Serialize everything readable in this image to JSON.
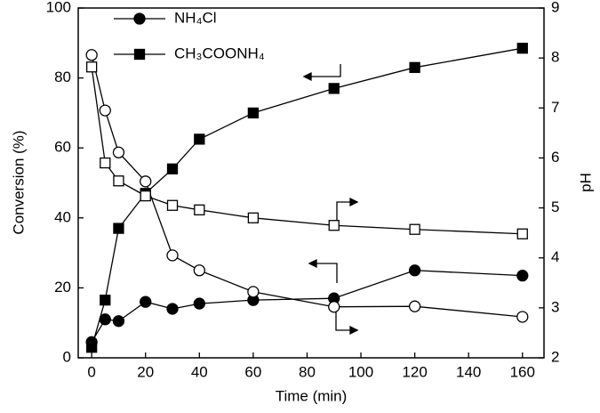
{
  "chart_data": {
    "type": "line",
    "x_label": "Time (min)",
    "y_label": "Conversion (%)",
    "y2_label": "pH",
    "x": [
      0,
      5,
      10,
      20,
      30,
      40,
      60,
      90,
      120,
      160
    ],
    "xlim": [
      -5,
      168
    ],
    "xticks": [
      0,
      20,
      40,
      60,
      80,
      100,
      120,
      140,
      160
    ],
    "ylim": [
      0,
      100
    ],
    "yticks": [
      0,
      20,
      40,
      60,
      80,
      100
    ],
    "y2lim": [
      2,
      9
    ],
    "y2ticks": [
      2,
      3,
      4,
      5,
      6,
      7,
      8,
      9
    ],
    "legend": "top-left",
    "series": [
      {
        "name": "NH₄Cl",
        "color": "#000000",
        "marker": "circle",
        "values": [
          4.5,
          11,
          10.5,
          16,
          14,
          15.5,
          16.5,
          17,
          25,
          23.5
        ],
        "values_y2": [
          8.06,
          6.95,
          6.11,
          5.53,
          4.05,
          3.75,
          3.32,
          3.02,
          3.03,
          2.82
        ]
      },
      {
        "name": "CH₃COONH₄",
        "color": "#000000",
        "marker": "square",
        "values": [
          3,
          16.5,
          37,
          47,
          54,
          62.5,
          70,
          77,
          83,
          88.5
        ],
        "values_y2": [
          7.82,
          5.9,
          5.54,
          5.24,
          5.05,
          4.96,
          4.8,
          4.65,
          4.57,
          4.48
        ]
      }
    ]
  }
}
